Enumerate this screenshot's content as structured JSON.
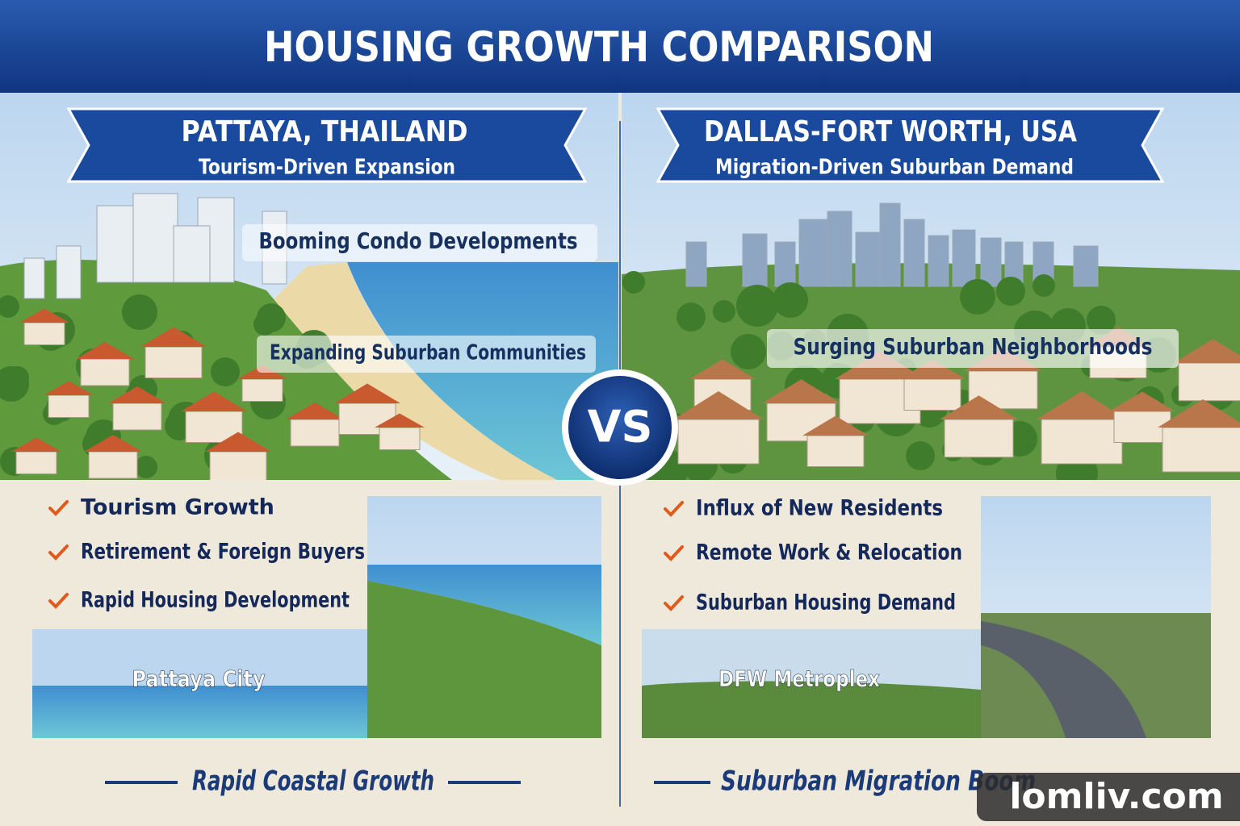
{
  "header": {
    "title": "HOUSING GROWTH COMPARISON"
  },
  "left": {
    "heading": "PATTAYA, THAILAND",
    "subtitle": "Tourism-Driven Expansion",
    "scene_labels": [
      "Booming Condo Developments",
      "Expanding Suburban Communities"
    ],
    "bullets": [
      "Tourism Growth",
      "Retirement & Foreign Buyers",
      "Rapid Housing Development"
    ],
    "inset_label": "Pattaya City",
    "footer": "Rapid Coastal Growth"
  },
  "right": {
    "heading": "DALLAS-FORT WORTH, USA",
    "subtitle": "Migration-Driven Suburban Demand",
    "scene_labels": [
      "Surging Suburban Neighborhoods"
    ],
    "bullets": [
      "Influx of New Residents",
      "Remote Work & Relocation",
      "Suburban Housing Demand"
    ],
    "inset_label": "DFW Metroplex",
    "footer": "Suburban Migration Boom"
  },
  "badge": "VS",
  "watermark": "lomliv.com"
}
